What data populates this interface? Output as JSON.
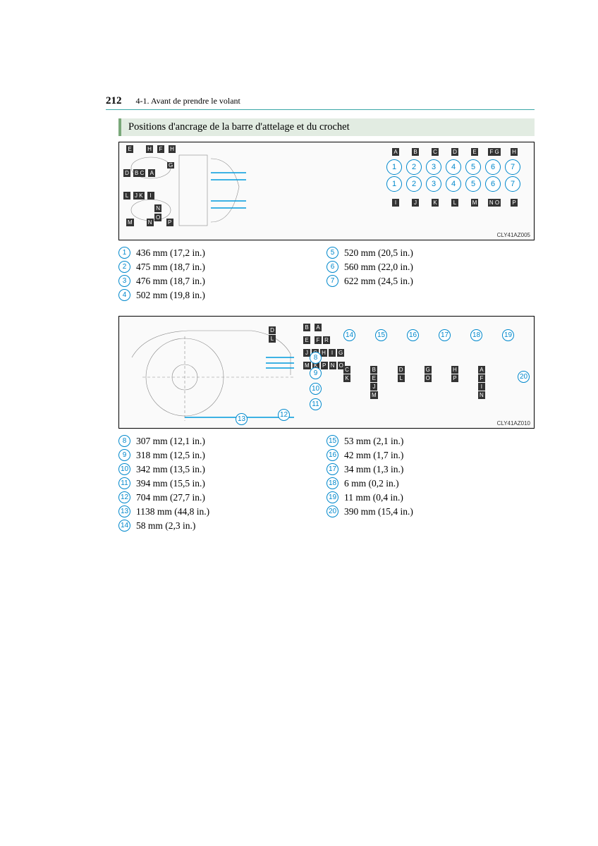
{
  "header": {
    "page_number": "212",
    "section": "4-1. Avant de prendre le volant"
  },
  "banner": "Positions d'ancrage de la barre d'attelage et du crochet",
  "diagram1": {
    "code": "CLY41AZ005",
    "letters_row1": [
      "A",
      "B",
      "C",
      "D",
      "E",
      "F G",
      "H"
    ],
    "letters_row2": [
      "I",
      "J",
      "K",
      "L",
      "M",
      "N O",
      "P"
    ],
    "left_letters_top": [
      "E",
      "H",
      "F",
      "H",
      "G"
    ],
    "left_letters_mid": [
      "D",
      "B C",
      "A"
    ],
    "left_letters_bot": [
      "L",
      "J K",
      "I",
      "O"
    ],
    "left_letters_far": [
      "M",
      "N",
      "P"
    ],
    "circles": [
      "1",
      "2",
      "3",
      "4",
      "5",
      "6",
      "7"
    ]
  },
  "legend1": {
    "col1": [
      {
        "n": "1",
        "text": "436 mm (17,2 in.)"
      },
      {
        "n": "2",
        "text": "475 mm (18,7 in.)"
      },
      {
        "n": "3",
        "text": "476 mm (18,7 in.)"
      },
      {
        "n": "4",
        "text": "502 mm (19,8 in.)"
      }
    ],
    "col2": [
      {
        "n": "5",
        "text": "520 mm (20,5 in.)"
      },
      {
        "n": "6",
        "text": "560 mm (22,0 in.)"
      },
      {
        "n": "7",
        "text": "622 mm (24,5 in.)"
      }
    ]
  },
  "diagram2": {
    "code": "CLY41AZ010",
    "top_numbers": [
      "14",
      "15",
      "16",
      "17",
      "18",
      "19"
    ],
    "side_number": "20",
    "vert_numbers": [
      "8",
      "9",
      "10",
      "11"
    ],
    "bottom_numbers": [
      "12"
    ],
    "far_bottom": "13",
    "callout_rows": [
      [
        "B",
        "",
        "A"
      ],
      [
        "E",
        "",
        "F",
        "R"
      ],
      [
        "J",
        "C",
        "H",
        "I",
        "G"
      ],
      [
        "M",
        "K",
        "P",
        "N",
        "O"
      ]
    ],
    "callout_left": [
      "D",
      "L"
    ],
    "stacks": [
      [
        "C",
        "K"
      ],
      [
        "B",
        "E",
        "J",
        "M"
      ],
      [
        "D",
        "L"
      ],
      [
        "G",
        "O"
      ],
      [
        "H",
        "P"
      ],
      [
        "A",
        "F",
        "I",
        "N"
      ]
    ]
  },
  "legend2": {
    "col1": [
      {
        "n": "8",
        "text": "307 mm (12,1 in.)"
      },
      {
        "n": "9",
        "text": "318 mm (12,5 in.)"
      },
      {
        "n": "10",
        "text": "342 mm (13,5 in.)"
      },
      {
        "n": "11",
        "text": "394 mm (15,5 in.)"
      },
      {
        "n": "12",
        "text": "704 mm (27,7 in.)"
      },
      {
        "n": "13",
        "text": "1138 mm (44,8 in.)"
      },
      {
        "n": "14",
        "text": "58 mm (2,3 in.)"
      }
    ],
    "col2": [
      {
        "n": "15",
        "text": "53 mm (2,1 in.)"
      },
      {
        "n": "16",
        "text": "42 mm (1,7 in.)"
      },
      {
        "n": "17",
        "text": "34 mm (1,3 in.)"
      },
      {
        "n": "18",
        "text": "6 mm (0,2 in.)"
      },
      {
        "n": "19",
        "text": "11 mm (0,4 in.)"
      },
      {
        "n": "20",
        "text": "390 mm (15,4 in.)"
      }
    ]
  },
  "colors": {
    "accent_teal": "#3aa6a6",
    "banner_bg": "#e2ece2",
    "banner_border": "#7aa87a",
    "circle_blue": "#0088cc"
  }
}
